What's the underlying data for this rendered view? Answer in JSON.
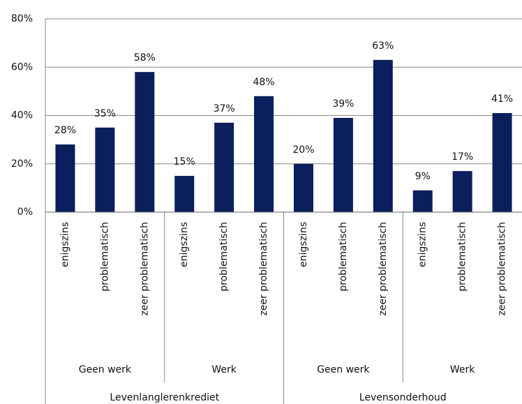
{
  "chart_data": {
    "type": "bar",
    "categories": [
      "enigszins",
      "problematisch",
      "zeer problematisch",
      "enigszins",
      "problematisch",
      "zeer problematisch",
      "enigszins",
      "problematisch",
      "zeer problematisch",
      "enigszins",
      "problematisch",
      "zeer problematisch"
    ],
    "values": [
      28,
      35,
      58,
      15,
      37,
      48,
      20,
      39,
      63,
      9,
      17,
      41
    ],
    "value_labels": [
      "28%",
      "35%",
      "58%",
      "15%",
      "37%",
      "48%",
      "20%",
      "39%",
      "63%",
      "9%",
      "17%",
      "41%"
    ],
    "subgroups": [
      "Geen werk",
      "Werk",
      "Geen werk",
      "Werk"
    ],
    "groups": [
      "Levenlanglerenkrediet",
      "Levensonderhoud"
    ],
    "color": "#0b1f5c",
    "ylim": [
      0,
      80
    ],
    "yticks": [
      {
        "value": 0,
        "label": "0%"
      },
      {
        "value": 20,
        "label": "20%"
      },
      {
        "value": 40,
        "label": "40%"
      },
      {
        "value": 60,
        "label": "60%"
      },
      {
        "value": 80,
        "label": "80%"
      }
    ],
    "grid": true
  }
}
